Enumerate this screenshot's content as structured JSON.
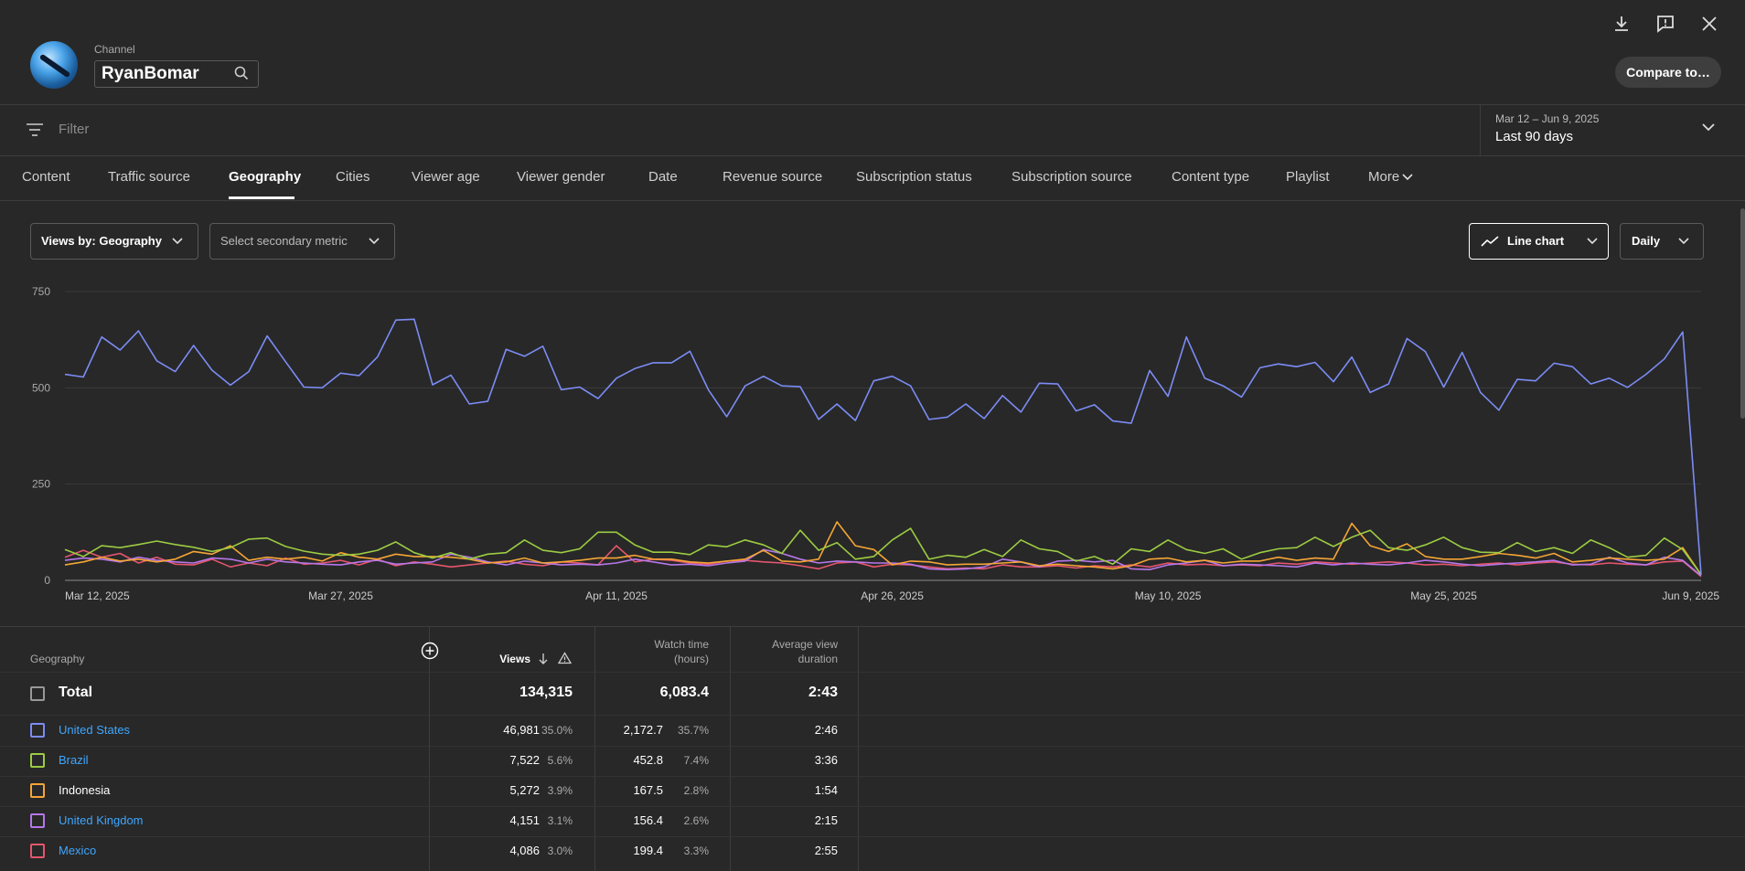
{
  "header": {
    "channel_label": "Channel",
    "channel_name": "RyanBomar",
    "compare_label": "Compare to…",
    "icons": [
      "download-icon",
      "feedback-icon",
      "close-icon"
    ]
  },
  "filter": {
    "placeholder": "Filter",
    "date_range_sub": "Mar 12 – Jun 9, 2025",
    "date_range_main": "Last 90 days"
  },
  "tabs": [
    {
      "label": "Content",
      "active": false
    },
    {
      "label": "Traffic source",
      "active": false
    },
    {
      "label": "Geography",
      "active": true
    },
    {
      "label": "Cities",
      "active": false
    },
    {
      "label": "Viewer age",
      "active": false
    },
    {
      "label": "Viewer gender",
      "active": false
    },
    {
      "label": "Date",
      "active": false
    },
    {
      "label": "Revenue source",
      "active": false
    },
    {
      "label": "Subscription status",
      "active": false
    },
    {
      "label": "Subscription source",
      "active": false
    },
    {
      "label": "Content type",
      "active": false
    },
    {
      "label": "Playlist",
      "active": false
    },
    {
      "label": "More",
      "active": false
    }
  ],
  "controls": {
    "primary_metric": "Views by: Geography",
    "secondary_metric": "Select secondary metric",
    "chart_type": "Line chart",
    "interval": "Daily"
  },
  "chart_data": {
    "type": "line",
    "x_tick_labels": [
      "Mar 12, 2025",
      "Mar 27, 2025",
      "Apr 11, 2025",
      "Apr 26, 2025",
      "May 10, 2025",
      "May 25, 2025",
      "Jun 9, 2025"
    ],
    "y_ticks": [
      0,
      250,
      500,
      750
    ],
    "ylim": [
      0,
      750
    ],
    "grid": true,
    "x_start": "2025-03-12",
    "series": [
      {
        "name": "United States",
        "color": "#7b8cf5",
        "values": [
          535,
          528,
          632,
          598,
          648,
          570,
          542,
          610,
          546,
          507,
          542,
          635,
          568,
          502,
          500,
          538,
          532,
          580,
          676,
          678,
          508,
          533,
          458,
          465,
          600,
          582,
          608,
          495,
          502,
          472,
          525,
          550,
          565,
          565,
          595,
          495,
          425,
          505,
          530,
          505,
          503,
          418,
          458,
          415,
          518,
          530,
          505,
          418,
          424,
          458,
          420,
          480,
          437,
          512,
          510,
          440,
          456,
          414,
          408,
          545,
          478,
          632,
          525,
          505,
          476,
          552,
          562,
          555,
          566,
          516,
          580,
          488,
          510,
          628,
          594,
          502,
          592,
          488,
          442,
          522,
          518,
          564,
          555,
          510,
          525,
          501,
          535,
          575,
          645,
          15
        ]
      },
      {
        "name": "Brazil",
        "color": "#9ccc42",
        "values": [
          80,
          62,
          90,
          85,
          93,
          102,
          93,
          86,
          75,
          85,
          107,
          110,
          88,
          76,
          68,
          65,
          68,
          78,
          100,
          72,
          58,
          72,
          55,
          68,
          72,
          105,
          78,
          72,
          82,
          125,
          125,
          92,
          73,
          73,
          67,
          92,
          87,
          105,
          92,
          70,
          130,
          78,
          98,
          55,
          62,
          105,
          135,
          55,
          65,
          60,
          80,
          62,
          105,
          82,
          75,
          50,
          62,
          42,
          82,
          75,
          105,
          80,
          70,
          82,
          55,
          72,
          82,
          85,
          112,
          88,
          112,
          130,
          85,
          78,
          92,
          112,
          85,
          73,
          72,
          98,
          75,
          85,
          70,
          105,
          85,
          60,
          65,
          110,
          80,
          15
        ]
      },
      {
        "name": "Indonesia",
        "color": "#f5a535",
        "values": [
          40,
          48,
          60,
          50,
          55,
          48,
          55,
          75,
          68,
          90,
          52,
          60,
          55,
          60,
          50,
          72,
          60,
          55,
          68,
          62,
          62,
          60,
          55,
          45,
          48,
          58,
          45,
          48,
          52,
          58,
          58,
          65,
          55,
          55,
          48,
          45,
          50,
          55,
          78,
          50,
          48,
          55,
          152,
          90,
          80,
          40,
          50,
          48,
          40,
          42,
          42,
          45,
          48,
          38,
          42,
          38,
          35,
          30,
          38,
          55,
          58,
          48,
          52,
          45,
          50,
          50,
          60,
          52,
          58,
          55,
          148,
          90,
          75,
          95,
          62,
          55,
          55,
          62,
          70,
          65,
          58,
          70,
          48,
          52,
          58,
          55,
          52,
          55,
          85,
          15
        ]
      },
      {
        "name": "United Kingdom",
        "color": "#b577e9",
        "values": [
          52,
          58,
          55,
          48,
          60,
          52,
          48,
          45,
          58,
          55,
          45,
          55,
          48,
          45,
          42,
          40,
          48,
          52,
          42,
          45,
          48,
          68,
          60,
          48,
          40,
          50,
          45,
          40,
          42,
          40,
          45,
          55,
          48,
          40,
          42,
          38,
          45,
          50,
          80,
          70,
          55,
          45,
          50,
          48,
          45,
          45,
          42,
          30,
          28,
          30,
          35,
          55,
          48,
          35,
          50,
          52,
          48,
          52,
          30,
          28,
          40,
          45,
          52,
          38,
          42,
          40,
          38,
          35,
          45,
          40,
          45,
          42,
          40,
          45,
          52,
          48,
          42,
          38,
          42,
          45,
          48,
          52,
          40,
          42,
          60,
          45,
          40,
          60,
          52,
          12
        ]
      },
      {
        "name": "Mexico",
        "color": "#e5566e",
        "values": [
          60,
          78,
          60,
          70,
          45,
          60,
          42,
          40,
          55,
          35,
          45,
          38,
          58,
          42,
          45,
          52,
          40,
          55,
          38,
          48,
          42,
          35,
          40,
          45,
          50,
          42,
          38,
          48,
          45,
          40,
          90,
          48,
          55,
          52,
          45,
          42,
          50,
          52,
          48,
          45,
          38,
          30,
          45,
          48,
          35,
          42,
          40,
          35,
          30,
          32,
          30,
          40,
          35,
          35,
          38,
          32,
          38,
          35,
          40,
          35,
          45,
          40,
          42,
          38,
          40,
          38,
          45,
          42,
          48,
          45,
          42,
          45,
          48,
          45,
          40,
          42,
          38,
          42,
          45,
          40,
          45,
          48,
          42,
          40,
          45,
          42,
          40,
          48,
          50,
          10
        ]
      }
    ]
  },
  "table": {
    "headers": {
      "dimension": "Geography",
      "views": "Views",
      "watch_time_1": "Watch time",
      "watch_time_2": "(hours)",
      "avd_1": "Average view",
      "avd_2": "duration"
    },
    "total": {
      "label": "Total",
      "views": "134,315",
      "watch_time": "6,083.4",
      "avd": "2:43"
    },
    "rows": [
      {
        "name": "United States",
        "link": true,
        "color": "#7b8cf5",
        "views": "46,981",
        "views_pct": "35.0%",
        "watch": "2,172.7",
        "watch_pct": "35.7%",
        "avd": "2:46"
      },
      {
        "name": "Brazil",
        "link": true,
        "color": "#9ccc42",
        "views": "7,522",
        "views_pct": "5.6%",
        "watch": "452.8",
        "watch_pct": "7.4%",
        "avd": "3:36"
      },
      {
        "name": "Indonesia",
        "link": false,
        "color": "#f5a535",
        "views": "5,272",
        "views_pct": "3.9%",
        "watch": "167.5",
        "watch_pct": "2.8%",
        "avd": "1:54"
      },
      {
        "name": "United Kingdom",
        "link": true,
        "color": "#b577e9",
        "views": "4,151",
        "views_pct": "3.1%",
        "watch": "156.4",
        "watch_pct": "2.6%",
        "avd": "2:15"
      },
      {
        "name": "Mexico",
        "link": true,
        "color": "#e5566e",
        "views": "4,086",
        "views_pct": "3.0%",
        "watch": "199.4",
        "watch_pct": "3.3%",
        "avd": "2:55"
      }
    ]
  }
}
